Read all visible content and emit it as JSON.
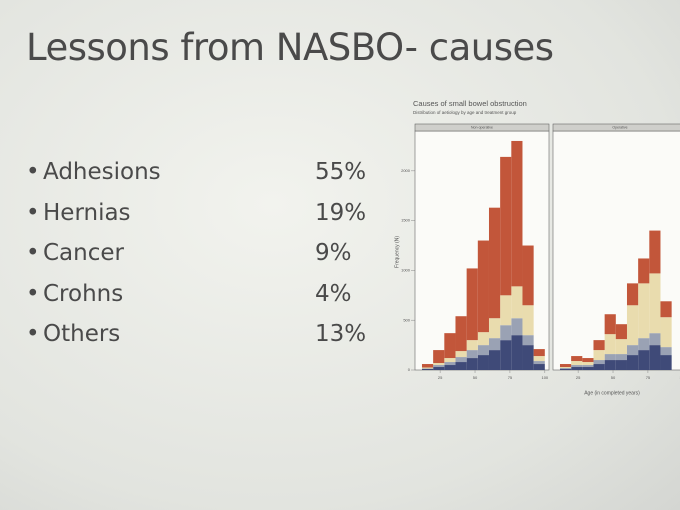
{
  "slide": {
    "title": "Lessons from NASBO- causes",
    "bullets": [
      {
        "label": "Adhesions",
        "value": "55%"
      },
      {
        "label": "Hernias",
        "value": "19%"
      },
      {
        "label": "Cancer",
        "value": "9%"
      },
      {
        "label": "Crohns",
        "value": "4%"
      },
      {
        "label": "Others",
        "value": "13%"
      }
    ]
  },
  "chart_data": {
    "type": "histogram",
    "title": "Causes of small bowel obstruction",
    "subtitle": "Distribution of aetiology by age and treatment group",
    "xlabel": "Age (in completed years)",
    "ylabel": "Frequency (N)",
    "bins": [
      12,
      20,
      28,
      36,
      44,
      52,
      60,
      68,
      76,
      84,
      92,
      100
    ],
    "xlim": [
      7,
      103
    ],
    "xticks": [
      25,
      50,
      75,
      100
    ],
    "ylim": [
      0,
      2400
    ],
    "yticks": [
      0,
      500,
      1000,
      1500,
      2000
    ],
    "panels": [
      {
        "title": "Non-operative",
        "series": [
          {
            "color": "#3f4a78",
            "values": [
              10,
              30,
              50,
              80,
              120,
              150,
              200,
              300,
              350,
              250,
              60
            ]
          },
          {
            "color": "#9aa2b4",
            "values": [
              5,
              20,
              30,
              50,
              80,
              100,
              120,
              150,
              170,
              100,
              30
            ]
          },
          {
            "color": "#e9dcae",
            "values": [
              10,
              20,
              40,
              60,
              100,
              130,
              200,
              300,
              320,
              300,
              50
            ]
          },
          {
            "color": "#c2563a",
            "values": [
              35,
              130,
              250,
              350,
              720,
              920,
              1110,
              1390,
              1460,
              600,
              70
            ]
          }
        ]
      },
      {
        "title": "Operative",
        "series": [
          {
            "color": "#3f4a78",
            "values": [
              10,
              30,
              30,
              60,
              100,
              100,
              150,
              200,
              250,
              150,
              null
            ]
          },
          {
            "color": "#9aa2b4",
            "values": [
              10,
              20,
              20,
              40,
              60,
              60,
              100,
              120,
              120,
              80,
              null
            ]
          },
          {
            "color": "#e9dcae",
            "values": [
              10,
              40,
              30,
              100,
              200,
              150,
              400,
              550,
              600,
              300,
              null
            ]
          },
          {
            "color": "#c2563a",
            "values": [
              30,
              50,
              40,
              100,
              200,
              150,
              220,
              250,
              430,
              160,
              null
            ]
          }
        ]
      }
    ]
  }
}
